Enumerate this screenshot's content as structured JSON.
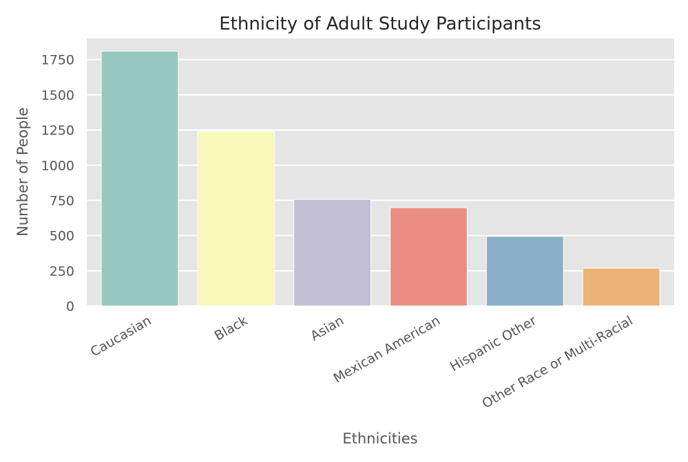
{
  "chart_data": {
    "type": "bar",
    "title": "Ethnicity of Adult Study Participants",
    "xlabel": "Ethnicities",
    "ylabel": "Number of People",
    "categories": [
      "Caucasian",
      "Black",
      "Asian",
      "Mexican American",
      "Hispanic Other",
      "Other Race or Multi-Racial"
    ],
    "values": [
      1810,
      1240,
      757,
      698,
      494,
      268
    ],
    "colors": [
      "#97c8bf",
      "#f7f7b9",
      "#c1bed5",
      "#ea8e84",
      "#8aaec8",
      "#ebb374"
    ],
    "yticks": [
      0,
      250,
      500,
      750,
      1000,
      1250,
      1500,
      1750
    ],
    "ylim": [
      0,
      1900
    ],
    "grid": true,
    "legend": "none"
  }
}
